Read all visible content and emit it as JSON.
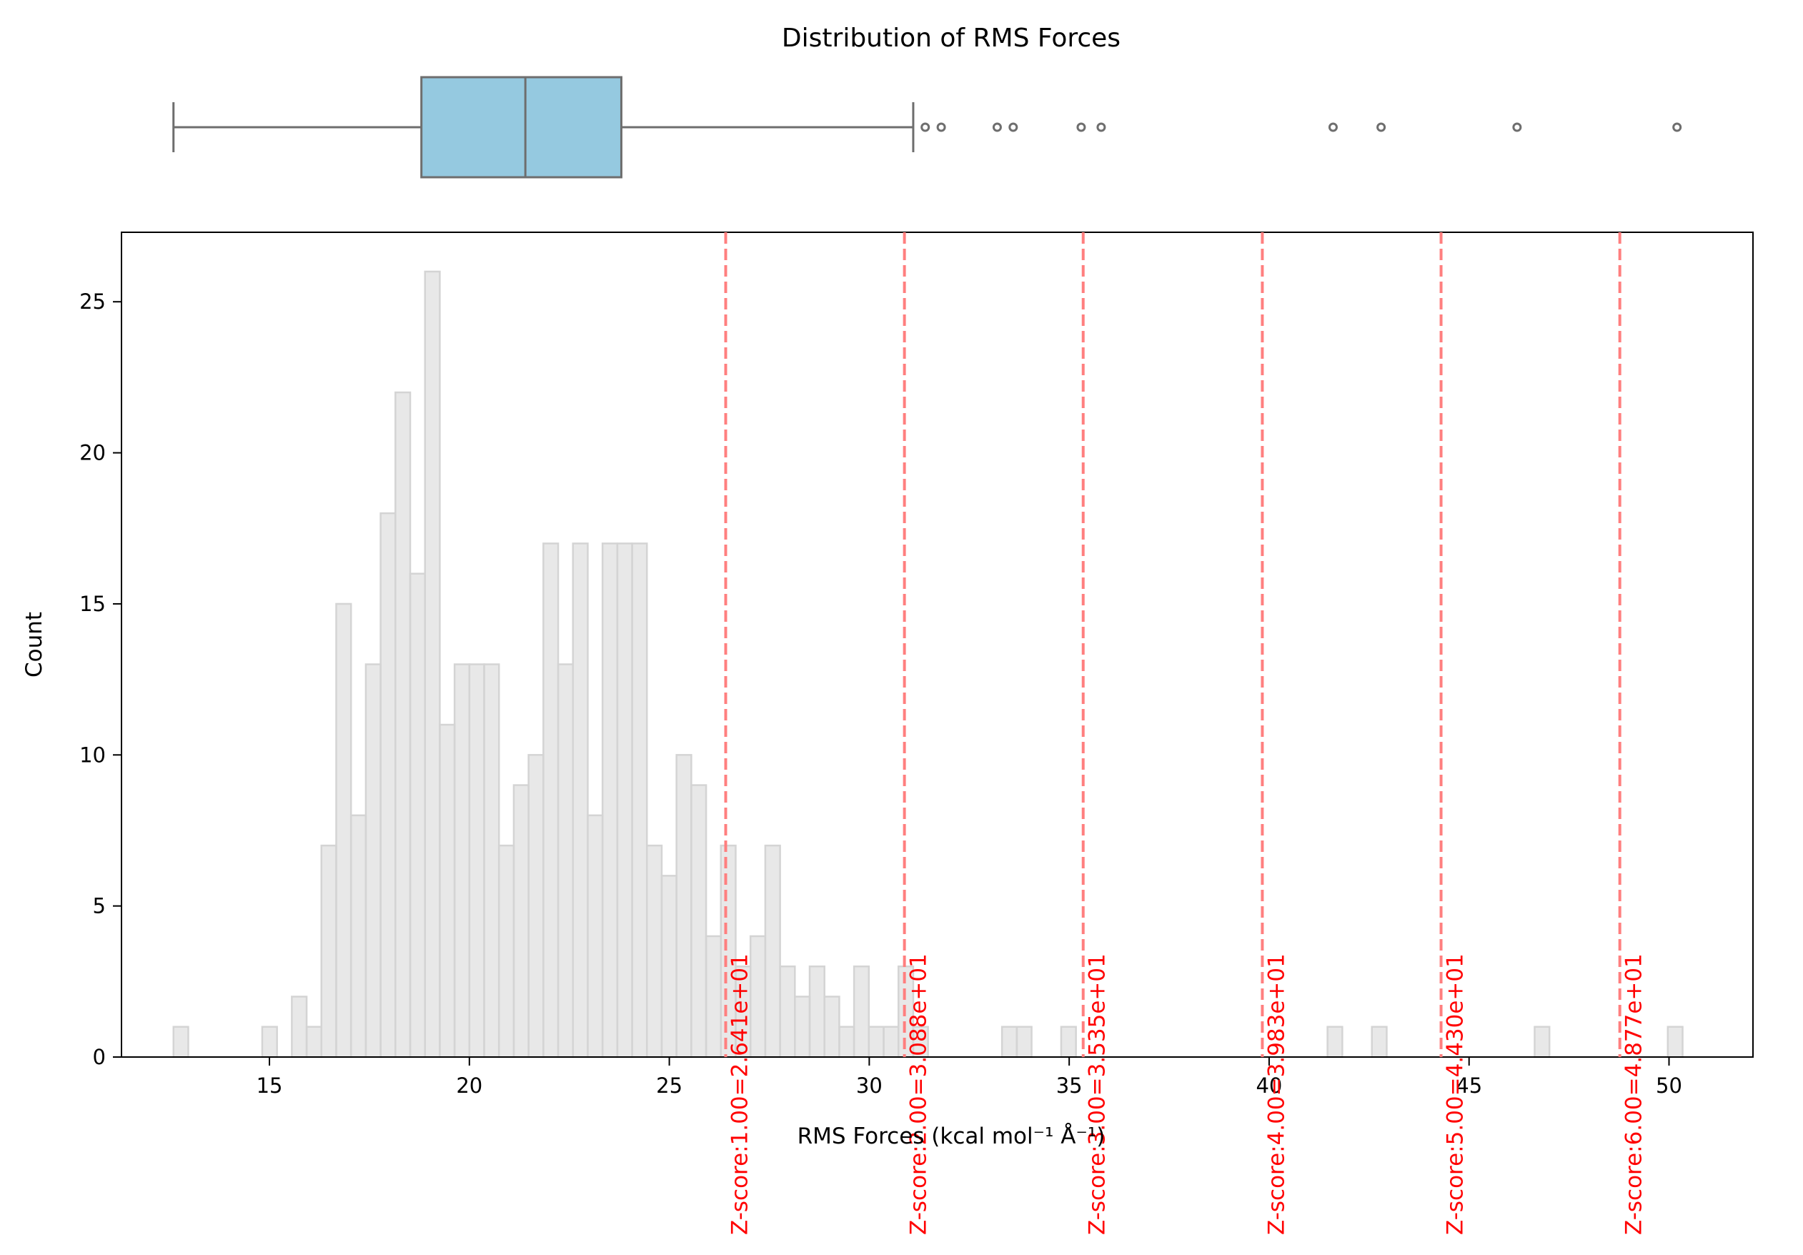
{
  "chart_data": [
    {
      "type": "box",
      "title": "Distribution of RMS Forces",
      "orientation": "horizontal",
      "whisker_low": 12.6,
      "q1": 18.8,
      "median": 21.4,
      "q3": 23.8,
      "whisker_high": 31.1,
      "outliers": [
        31.4,
        31.8,
        33.2,
        33.6,
        35.3,
        35.8,
        41.6,
        42.8,
        46.2,
        50.2
      ],
      "box_color": "#95c9e0",
      "line_color": "#6e6e6e"
    },
    {
      "type": "histogram",
      "xlabel": "RMS Forces (kcal mol⁻¹ Å⁻¹)",
      "ylabel": "Count",
      "xlim": [
        11.3,
        52.1
      ],
      "ylim": [
        0,
        27.3
      ],
      "x_ticks": [
        15,
        20,
        25,
        30,
        35,
        40,
        45,
        50
      ],
      "y_ticks": [
        0,
        5,
        10,
        15,
        20,
        25
      ],
      "bin_start": 12.6,
      "bin_width": 0.37,
      "counts": [
        1,
        0,
        0,
        0,
        0,
        0,
        1,
        0,
        2,
        1,
        7,
        15,
        8,
        13,
        18,
        22,
        16,
        26,
        11,
        13,
        13,
        13,
        7,
        9,
        10,
        17,
        13,
        17,
        8,
        17,
        17,
        17,
        7,
        6,
        10,
        9,
        4,
        7,
        3,
        4,
        7,
        3,
        2,
        3,
        2,
        1,
        3,
        1,
        1,
        3,
        1,
        0,
        0,
        0,
        0,
        0,
        1,
        1,
        0,
        0,
        1,
        0,
        0,
        0,
        0,
        0,
        0,
        0,
        0,
        0,
        0,
        0,
        0,
        0,
        0,
        0,
        0,
        0,
        1,
        0,
        0,
        1,
        0,
        0,
        0,
        0,
        0,
        0,
        0,
        0,
        0,
        0,
        1,
        0,
        0,
        0,
        0,
        0,
        0,
        0,
        0,
        1
      ],
      "fill_color": "#e8e8e8",
      "edge_color": "#d4d4d4",
      "zscore_lines": [
        {
          "x": 26.41,
          "label": "Z-score:1.00=2.641e+01"
        },
        {
          "x": 30.88,
          "label": "Z-score:2.00=3.088e+01"
        },
        {
          "x": 35.35,
          "label": "Z-score:3.00=3.535e+01"
        },
        {
          "x": 39.83,
          "label": "Z-score:4.00=3.983e+01"
        },
        {
          "x": 44.3,
          "label": "Z-score:5.00=4.430e+01"
        },
        {
          "x": 48.77,
          "label": "Z-score:6.00=4.877e+01"
        }
      ],
      "zscore_color": "#ff7f7f"
    }
  ]
}
